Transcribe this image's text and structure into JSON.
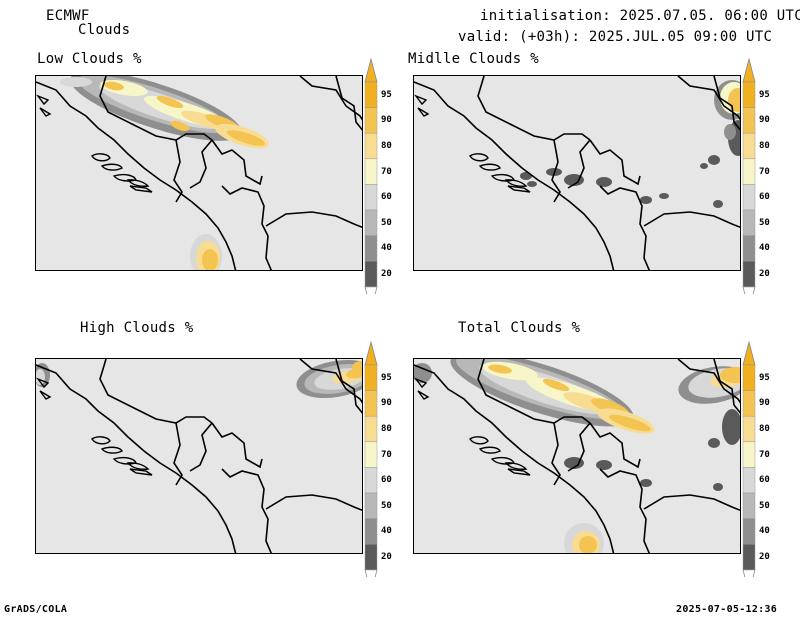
{
  "header": {
    "model": "ECMWF",
    "product": "Clouds",
    "initialisation": "initialisation: 2025.07.05. 06:00 UTC",
    "valid": "valid: (+03h): 2025.JUL.05 09:00 UTC"
  },
  "panels": [
    {
      "title": "Low Clouds %"
    },
    {
      "title": "Midlle Clouds %"
    },
    {
      "title": "High Clouds %"
    },
    {
      "title": "Total Clouds %"
    }
  ],
  "colorbar": {
    "labels": [
      "95",
      "90",
      "80",
      "70",
      "60",
      "50",
      "40",
      "20"
    ],
    "colors": [
      "#f0b020",
      "#f3c452",
      "#f7dc92",
      "#f6f6c8",
      "#d8d8d8",
      "#b8b8b8",
      "#8f8f8f",
      "#5a5a5a"
    ]
  },
  "map": {
    "background": "#e6e6e6",
    "border_color": "#000000"
  },
  "footer": {
    "left": "GrADS/COLA",
    "right": "2025-07-05-12:36"
  }
}
